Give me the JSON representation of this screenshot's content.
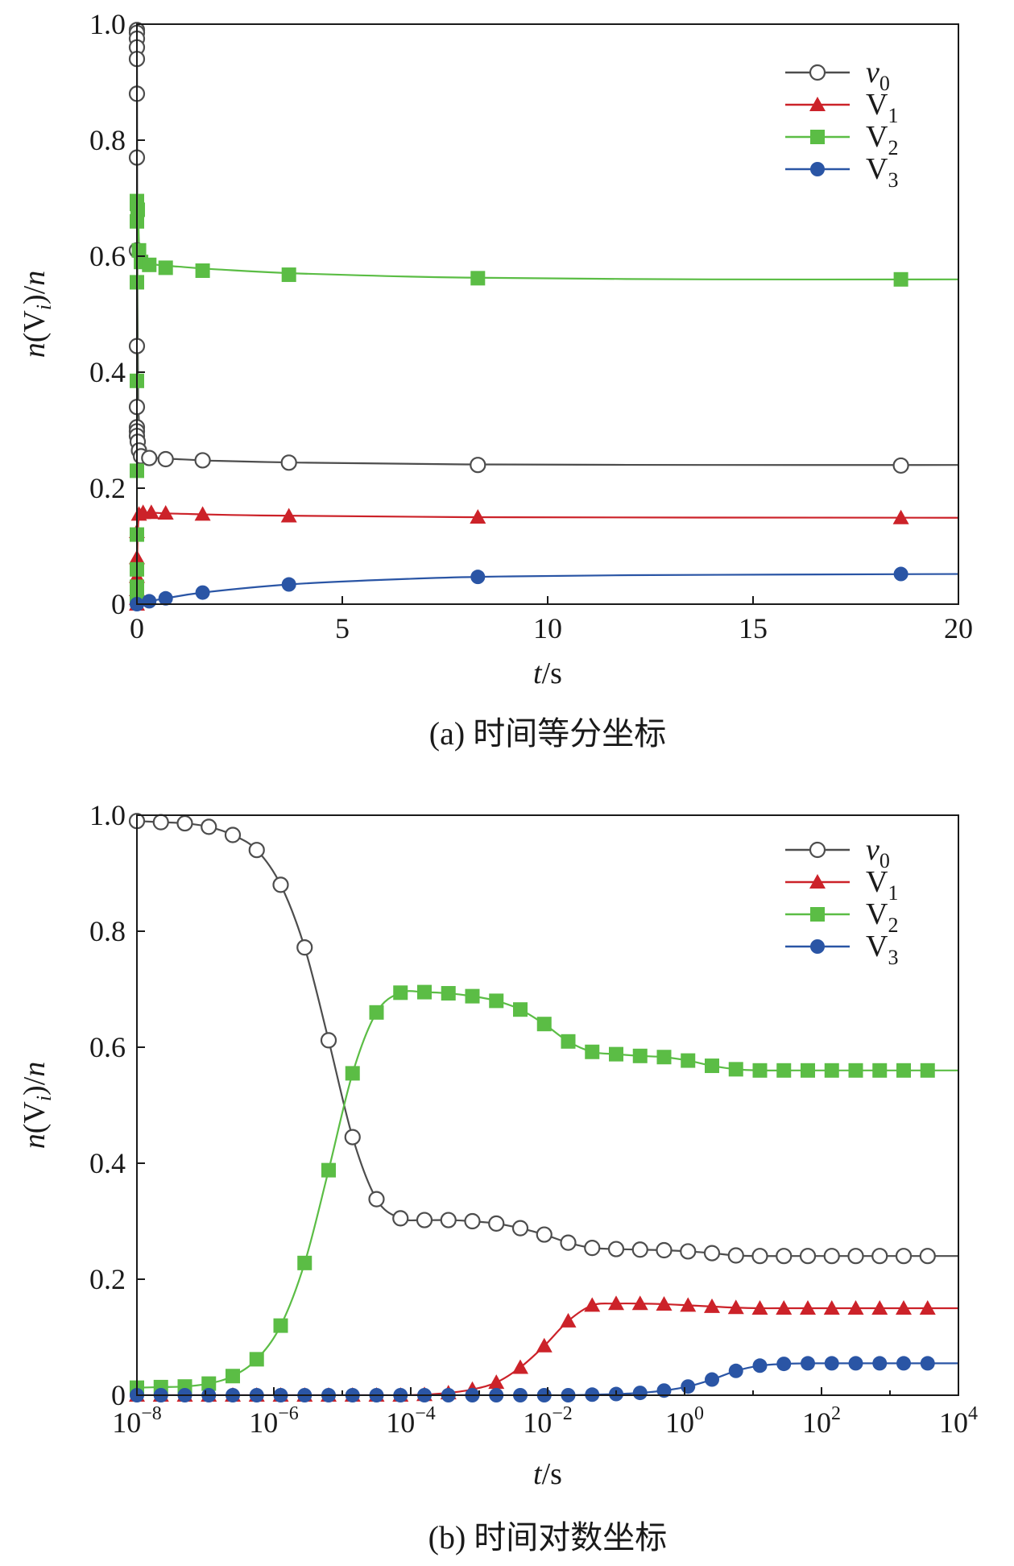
{
  "colors": {
    "v0": "#4d4d4d",
    "V1": "#cc2229",
    "V2": "#5bbd45",
    "V3": "#2a55a5",
    "axis": "#1a1a1a"
  },
  "chart_data": [
    {
      "type": "line",
      "caption": "(a) 时间等分坐标",
      "xlabel_italic": "t",
      "xlabel_rest": "/s",
      "ylabel": {
        "n1": "n",
        "open": "(V",
        "sub": "i",
        "close": ")/",
        "n2": "n"
      },
      "xlim": [
        0,
        20
      ],
      "ylim": [
        0,
        1.0
      ],
      "xticks": [
        0,
        5,
        10,
        15,
        20
      ],
      "xtick_labels": [
        "0",
        "5",
        "10",
        "15",
        "20"
      ],
      "yticks": [
        0,
        0.2,
        0.4,
        0.6,
        0.8,
        1.0
      ],
      "ytick_labels": [
        "0",
        "0.2",
        "0.4",
        "0.6",
        "0.8",
        "1.0"
      ],
      "legend_position": "top-right",
      "series": [
        {
          "key": "v0",
          "name": "v",
          "sub": "0",
          "italic": true,
          "marker": "circle-open",
          "line": [
            [
              0,
              0.99
            ],
            [
              0.003,
              0.9
            ],
            [
              0.01,
              0.6
            ],
            [
              0.03,
              0.35
            ],
            [
              0.1,
              0.3
            ],
            [
              0.2,
              0.26
            ],
            [
              0.5,
              0.252
            ],
            [
              1,
              0.25
            ],
            [
              2,
              0.247
            ],
            [
              4,
              0.244
            ],
            [
              8,
              0.241
            ],
            [
              14,
              0.24
            ],
            [
              20,
              0.24
            ]
          ],
          "markers": [
            [
              0,
              0.99
            ],
            [
              0,
              0.985
            ],
            [
              0,
              0.975
            ],
            [
              0,
              0.96
            ],
            [
              0,
              0.94
            ],
            [
              0,
              0.88
            ],
            [
              0,
              0.77
            ],
            [
              0,
              0.61
            ],
            [
              0,
              0.445
            ],
            [
              0,
              0.34
            ],
            [
              0,
              0.305
            ],
            [
              0,
              0.298
            ],
            [
              0,
              0.29
            ],
            [
              0.02,
              0.28
            ],
            [
              0.05,
              0.265
            ],
            [
              0.1,
              0.255
            ],
            [
              0.3,
              0.252
            ],
            [
              0.7,
              0.25
            ],
            [
              1.6,
              0.248
            ],
            [
              3.7,
              0.244
            ],
            [
              8.3,
              0.24
            ],
            [
              18.6,
              0.239
            ]
          ]
        },
        {
          "key": "V1",
          "name": "V",
          "sub": "1",
          "italic": false,
          "marker": "triangle",
          "line": [
            [
              0,
              0
            ],
            [
              0.005,
              0.05
            ],
            [
              0.02,
              0.12
            ],
            [
              0.06,
              0.155
            ],
            [
              0.2,
              0.158
            ],
            [
              1,
              0.156
            ],
            [
              3,
              0.153
            ],
            [
              8,
              0.15
            ],
            [
              20,
              0.149
            ]
          ],
          "markers": [
            [
              0,
              0.0
            ],
            [
              0,
              0.01
            ],
            [
              0,
              0.025
            ],
            [
              0,
              0.048
            ],
            [
              0,
              0.08
            ],
            [
              0,
              0.125
            ],
            [
              0.05,
              0.155
            ],
            [
              0.15,
              0.158
            ],
            [
              0.35,
              0.158
            ],
            [
              0.7,
              0.157
            ],
            [
              1.6,
              0.155
            ],
            [
              3.7,
              0.152
            ],
            [
              8.3,
              0.15
            ],
            [
              18.6,
              0.149
            ]
          ]
        },
        {
          "key": "V2",
          "name": "V",
          "sub": "2",
          "italic": false,
          "marker": "square",
          "line": [
            [
              0,
              0.015
            ],
            [
              0.001,
              0.4
            ],
            [
              0.003,
              0.66
            ],
            [
              0.01,
              0.695
            ],
            [
              0.03,
              0.68
            ],
            [
              0.06,
              0.61
            ],
            [
              0.15,
              0.59
            ],
            [
              0.5,
              0.585
            ],
            [
              1,
              0.582
            ],
            [
              2,
              0.577
            ],
            [
              4,
              0.57
            ],
            [
              8,
              0.563
            ],
            [
              14,
              0.56
            ],
            [
              20,
              0.56
            ]
          ],
          "markers": [
            [
              0,
              0.015
            ],
            [
              0,
              0.03
            ],
            [
              0,
              0.06
            ],
            [
              0,
              0.12
            ],
            [
              0,
              0.23
            ],
            [
              0,
              0.385
            ],
            [
              0,
              0.555
            ],
            [
              0,
              0.66
            ],
            [
              0,
              0.69
            ],
            [
              0,
              0.695
            ],
            [
              0.02,
              0.68
            ],
            [
              0.05,
              0.61
            ],
            [
              0.1,
              0.59
            ],
            [
              0.3,
              0.585
            ],
            [
              0.7,
              0.58
            ],
            [
              1.6,
              0.575
            ],
            [
              3.7,
              0.568
            ],
            [
              8.3,
              0.562
            ],
            [
              18.6,
              0.56
            ]
          ]
        },
        {
          "key": "V3",
          "name": "V",
          "sub": "3",
          "italic": false,
          "marker": "circle",
          "line": [
            [
              0,
              0
            ],
            [
              0.1,
              0.001
            ],
            [
              0.3,
              0.005
            ],
            [
              0.7,
              0.01
            ],
            [
              1.6,
              0.02
            ],
            [
              3.7,
              0.034
            ],
            [
              6,
              0.042
            ],
            [
              8.3,
              0.047
            ],
            [
              12,
              0.05
            ],
            [
              20,
              0.052
            ]
          ],
          "markers": [
            [
              0,
              0
            ],
            [
              0.3,
              0.005
            ],
            [
              0.7,
              0.01
            ],
            [
              1.6,
              0.02
            ],
            [
              3.7,
              0.034
            ],
            [
              8.3,
              0.047
            ],
            [
              18.6,
              0.052
            ]
          ]
        }
      ]
    },
    {
      "type": "line",
      "caption": "(b) 时间对数坐标",
      "xlabel_italic": "t",
      "xlabel_rest": "/s",
      "ylabel": {
        "n1": "n",
        "open": "(V",
        "sub": "i",
        "close": ")/",
        "n2": "n"
      },
      "xscale": "log",
      "xlim": [
        1e-08,
        10000.0
      ],
      "ylim": [
        0,
        1.0
      ],
      "xticks": [
        1e-08,
        1e-06,
        0.0001,
        0.01,
        1,
        100,
        10000
      ],
      "xtick_labels": [
        {
          "base": "10",
          "exp": "−8"
        },
        {
          "base": "10",
          "exp": "−6"
        },
        {
          "base": "10",
          "exp": "−4"
        },
        {
          "base": "10",
          "exp": "−2"
        },
        {
          "base": "10",
          "exp": "0"
        },
        {
          "base": "10",
          "exp": "2"
        },
        {
          "base": "10",
          "exp": "4"
        }
      ],
      "yticks": [
        0,
        0.2,
        0.4,
        0.6,
        0.8,
        1.0
      ],
      "ytick_labels": [
        "0",
        "0.2",
        "0.4",
        "0.6",
        "0.8",
        "1.0"
      ],
      "legend_position": "top-right",
      "x_marker_exponents": [
        -8,
        -7.65,
        -7.3,
        -6.95,
        -6.6,
        -6.25,
        -5.9,
        -5.55,
        -5.2,
        -4.85,
        -4.5,
        -4.15,
        -3.8,
        -3.45,
        -3.1,
        -2.75,
        -2.4,
        -2.05,
        -1.7,
        -1.35,
        -1.0,
        -0.65,
        -0.3,
        0.05,
        0.4,
        0.75,
        1.1,
        1.45,
        1.8,
        2.15,
        2.5,
        2.85,
        3.2,
        3.55
      ],
      "series": [
        {
          "key": "v0",
          "name": "v",
          "sub": "0",
          "italic": true,
          "marker": "circle-open",
          "values": [
            0.99,
            0.988,
            0.986,
            0.98,
            0.966,
            0.94,
            0.88,
            0.772,
            0.612,
            0.445,
            0.338,
            0.305,
            0.302,
            0.302,
            0.3,
            0.296,
            0.288,
            0.277,
            0.263,
            0.254,
            0.252,
            0.251,
            0.25,
            0.248,
            0.245,
            0.241,
            0.24,
            0.24,
            0.24,
            0.24,
            0.24,
            0.24,
            0.24,
            0.24
          ]
        },
        {
          "key": "V1",
          "name": "V",
          "sub": "1",
          "italic": false,
          "marker": "triangle",
          "values": [
            0,
            0,
            0,
            0,
            0,
            0,
            0,
            0,
            0,
            0,
            0,
            0,
            0.001,
            0.004,
            0.01,
            0.022,
            0.048,
            0.085,
            0.128,
            0.155,
            0.158,
            0.158,
            0.157,
            0.155,
            0.153,
            0.151,
            0.15,
            0.15,
            0.15,
            0.15,
            0.15,
            0.15,
            0.15,
            0.15
          ]
        },
        {
          "key": "V2",
          "name": "V",
          "sub": "2",
          "italic": false,
          "marker": "square",
          "values": [
            0.013,
            0.014,
            0.015,
            0.02,
            0.033,
            0.062,
            0.12,
            0.228,
            0.388,
            0.555,
            0.66,
            0.694,
            0.695,
            0.693,
            0.688,
            0.68,
            0.665,
            0.64,
            0.61,
            0.592,
            0.588,
            0.585,
            0.583,
            0.577,
            0.568,
            0.562,
            0.56,
            0.56,
            0.56,
            0.56,
            0.56,
            0.56,
            0.56,
            0.56
          ]
        },
        {
          "key": "V3",
          "name": "V",
          "sub": "3",
          "italic": false,
          "marker": "circle",
          "values": [
            0,
            0,
            0,
            0,
            0,
            0,
            0,
            0,
            0,
            0,
            0,
            0,
            0,
            0,
            0,
            0,
            0,
            0,
            0,
            0.001,
            0.002,
            0.004,
            0.008,
            0.015,
            0.027,
            0.042,
            0.051,
            0.054,
            0.055,
            0.055,
            0.055,
            0.055,
            0.055,
            0.055
          ]
        }
      ]
    }
  ]
}
